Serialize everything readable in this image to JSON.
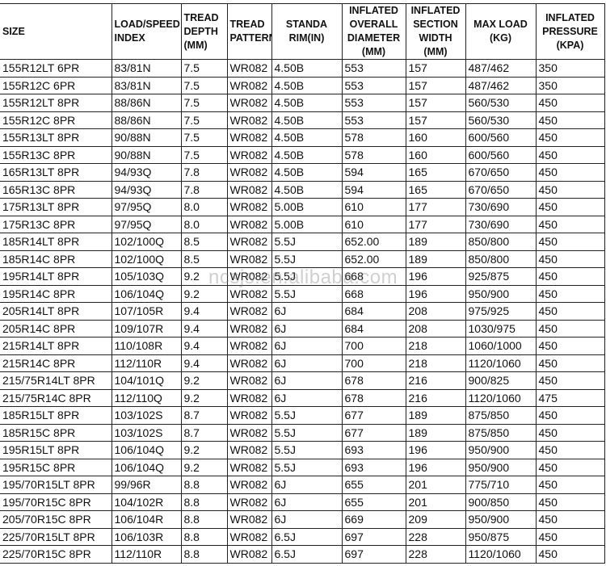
{
  "headers": [
    "SIZE",
    "LOAD/SPEED INDEX",
    "TREAD DEPTH (MM)",
    "TREAD PATTERN",
    "STANDA RIM(IN)",
    "INFLATED OVERALL DIAMETER (MM)",
    "INFLATED SECTION WIDTH (MM)",
    "MAX LOAD (KG)",
    "INFLATED PRESSURE (KPA)"
  ],
  "rows": [
    [
      "155R12LT 6PR",
      "83/81N",
      "7.5",
      "WR082",
      "4.50B",
      "553",
      "157",
      "487/462",
      "350"
    ],
    [
      "155R12C 6PR",
      "83/81N",
      "7.5",
      "WR082",
      "4.50B",
      "553",
      "157",
      "487/462",
      "350"
    ],
    [
      "155R12LT 8PR",
      "88/86N",
      "7.5",
      "WR082",
      "4.50B",
      "553",
      "157",
      "560/530",
      "450"
    ],
    [
      "155R12C 8PR",
      "88/86N",
      "7.5",
      "WR082",
      "4.50B",
      "553",
      "157",
      "560/530",
      "450"
    ],
    [
      "155R13LT 8PR",
      "90/88N",
      "7.5",
      "WR082",
      "4.50B",
      "578",
      "160",
      "600/560",
      "450"
    ],
    [
      "155R13C 8PR",
      "90/88N",
      "7.5",
      "WR082",
      "4.50B",
      "578",
      "160",
      "600/560",
      "450"
    ],
    [
      "165R13LT 8PR",
      "94/93Q",
      "7.8",
      "WR082",
      "4.50B",
      "594",
      "165",
      "670/650",
      "450"
    ],
    [
      "165R13C 8PR",
      "94/93Q",
      "7.8",
      "WR082",
      "4.50B",
      "594",
      "165",
      "670/650",
      "450"
    ],
    [
      "175R13LT 8PR",
      "97/95Q",
      "8.0",
      "WR082",
      "5.00B",
      "610",
      "177",
      "730/690",
      "450"
    ],
    [
      "175R13C 8PR",
      "97/95Q",
      "8.0",
      "WR082",
      "5.00B",
      "610",
      "177",
      "730/690",
      "450"
    ],
    [
      "185R14LT 8PR",
      "102/100Q",
      "8.5",
      "WR082",
      "5.5J",
      "652.00",
      "189",
      "850/800",
      "450"
    ],
    [
      "185R14C 8PR",
      "102/100Q",
      "8.5",
      "WR082",
      "5.5J",
      "652.00",
      "189",
      "850/800",
      "450"
    ],
    [
      "195R14LT 8PR",
      "105/103Q",
      "9.2",
      "WR082",
      "5.5J",
      "668",
      "196",
      "925/875",
      "450"
    ],
    [
      "195R14C 8PR",
      "106/104Q",
      "9.2",
      "WR082",
      "5.5J",
      "668",
      "196",
      "950/900",
      "450"
    ],
    [
      "205R14LT 8PR",
      "107/105R",
      "9.4",
      "WR082",
      "6J",
      "684",
      "208",
      "975/925",
      "450"
    ],
    [
      "205R14C 8PR",
      "109/107R",
      "9.4",
      "WR082",
      "6J",
      "684",
      "208",
      "1030/975",
      "450"
    ],
    [
      "215R14LT 8PR",
      "110/108R",
      "9.4",
      "WR082",
      "6J",
      "700",
      "218",
      "1060/1000",
      "450"
    ],
    [
      "215R14C 8PR",
      "112/110R",
      "9.4",
      "WR082",
      "6J",
      "700",
      "218",
      "1120/1060",
      "450"
    ],
    [
      "215/75R14LT 8PR",
      "104/101Q",
      "9.2",
      "WR082",
      "6J",
      "678",
      "216",
      "900/825",
      "450"
    ],
    [
      "215/75R14C 8PR",
      "112/110Q",
      "9.2",
      "WR082",
      "6J",
      "678",
      "216",
      "1120/1060",
      "475"
    ],
    [
      "185R15LT 8PR",
      "103/102S",
      "8.7",
      "WR082",
      "5.5J",
      "677",
      "189",
      "875/850",
      "450"
    ],
    [
      "185R15C 8PR",
      "103/102S",
      "8.7",
      "WR082",
      "5.5J",
      "677",
      "189",
      "875/850",
      "450"
    ],
    [
      "195R15LT 8PR",
      "106/104Q",
      "9.2",
      "WR082",
      "5.5J",
      "693",
      "196",
      "950/900",
      "450"
    ],
    [
      "195R15C 8PR",
      "106/104Q",
      "9.2",
      "WR082",
      "5.5J",
      "693",
      "196",
      "950/900",
      "450"
    ],
    [
      "195/70R15LT 8PR",
      "99/96R",
      "8.8",
      "WR082",
      "6J",
      "655",
      "201",
      "775/710",
      "450"
    ],
    [
      "195/70R15C 8PR",
      "104/102R",
      "8.8",
      "WR082",
      "6J",
      "655",
      "201",
      "900/850",
      "450"
    ],
    [
      "205/70R15C 8PR",
      "106/104R",
      "8.8",
      "WR082",
      "6J",
      "669",
      "209",
      "950/900",
      "450"
    ],
    [
      "225/70R15LT 8PR",
      "106/103R",
      "8.8",
      "WR082",
      "6.5J",
      "697",
      "228",
      "950/875",
      "450"
    ],
    [
      "225/70R15C 8PR",
      "112/110R",
      "8.8",
      "WR082",
      "6.5J",
      "697",
      "228",
      "1120/1060",
      "450"
    ]
  ],
  "watermark": "ncsjs.en.alibaba.com"
}
